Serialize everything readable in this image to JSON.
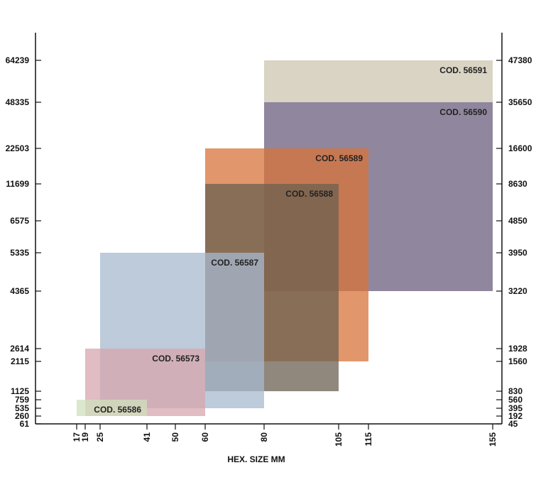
{
  "chart_data": {
    "type": "range-box",
    "xlabel": "HEX. SIZE MM",
    "x_ticks": [
      17,
      19,
      25,
      41,
      50,
      60,
      80,
      105,
      115,
      155
    ],
    "y_ticks_left": [
      "64239",
      "48335",
      "22503",
      "11699",
      "6575",
      "5335",
      "4365",
      "2614",
      "2115",
      "1125",
      "759",
      "535",
      "260",
      "61"
    ],
    "y_ticks_right": [
      "47380",
      "35650",
      "16600",
      "8630",
      "4850",
      "3950",
      "3220",
      "1928",
      "1560",
      "830",
      "560",
      "395",
      "192",
      "45"
    ],
    "boxes": [
      {
        "label": "COD. 56591",
        "x_from": 80,
        "x_to": 155,
        "y_from": 48335,
        "y_to": 64239,
        "color": "#d9d4c3"
      },
      {
        "label": "COD. 56590",
        "x_from": 80,
        "x_to": 155,
        "y_from": 4365,
        "y_to": 48335,
        "color": "#6b5e7c"
      },
      {
        "label": "COD. 56589",
        "x_from": 60,
        "x_to": 115,
        "y_from": 2115,
        "y_to": 22503,
        "color": "#d8733a"
      },
      {
        "label": "COD. 56588",
        "x_from": 60,
        "x_to": 105,
        "y_from": 1125,
        "y_to": 11699,
        "color": "#6b6050"
      },
      {
        "label": "COD. 56587",
        "x_from": 25,
        "x_to": 80,
        "y_from": 535,
        "y_to": 5335,
        "color": "#a7b9cf"
      },
      {
        "label": "COD. 56573",
        "x_from": 19,
        "x_to": 60,
        "y_from": 260,
        "y_to": 2614,
        "color": "#d7a6ad"
      },
      {
        "label": "COD. 56586",
        "x_from": 17,
        "x_to": 41,
        "y_from": 260,
        "y_to": 759,
        "color": "#cfe0bc"
      }
    ]
  }
}
